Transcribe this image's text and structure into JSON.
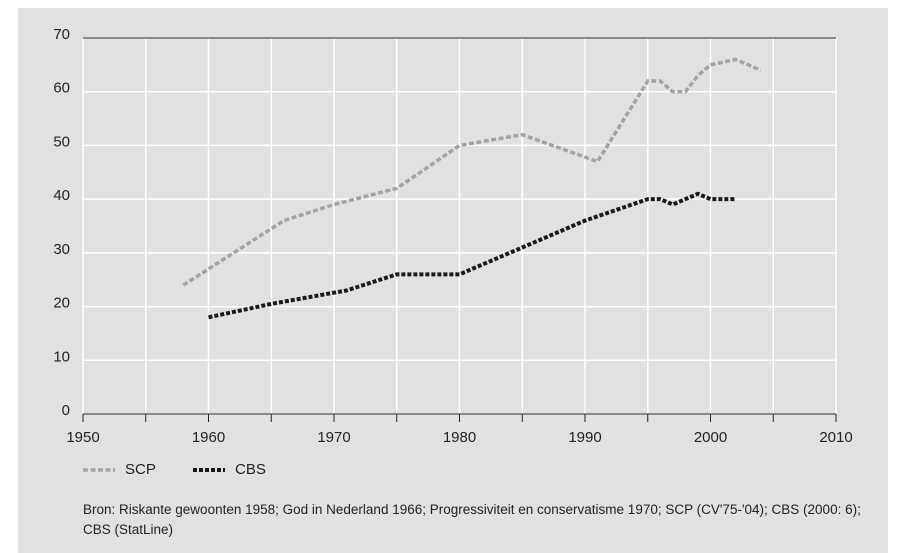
{
  "chart_data": {
    "type": "line",
    "x": [],
    "series": [
      {
        "name": "SCP",
        "color": "#a3a3a3",
        "x": [
          1958,
          1966,
          1970,
          1975,
          1980,
          1985,
          1991,
          1995,
          1996,
          1997,
          1998,
          1999,
          2000,
          2002,
          2004
        ],
        "values": [
          24,
          36,
          39,
          42,
          50,
          52,
          47,
          62,
          62,
          60,
          60,
          63,
          65,
          66,
          64
        ]
      },
      {
        "name": "CBS",
        "color": "#1a1a1a",
        "x": [
          1960,
          1965,
          1971,
          1975,
          1980,
          1985,
          1990,
          1995,
          1996,
          1997,
          1999,
          2000,
          2002
        ],
        "values": [
          18,
          20.5,
          23,
          26,
          26,
          31,
          36,
          40,
          40,
          39,
          41,
          40,
          40
        ]
      }
    ],
    "xlim": [
      1950,
      2010
    ],
    "xticks": [
      1950,
      1960,
      1970,
      1980,
      1990,
      2000,
      2010
    ],
    "xminor_ticks": [
      1955,
      1965,
      1975,
      1985,
      1995,
      2005
    ],
    "ylim": [
      0,
      70
    ],
    "yticks": [
      0,
      10,
      20,
      30,
      40,
      50,
      60,
      70
    ],
    "grid": true,
    "legend": "bottom-left",
    "source": "Bron: Riskante gewoonten 1958; God in Nederland 1966; Progressiviteit en conservatisme 1970; SCP (CV'75-'04); CBS (2000: 6); CBS (StatLine)"
  }
}
